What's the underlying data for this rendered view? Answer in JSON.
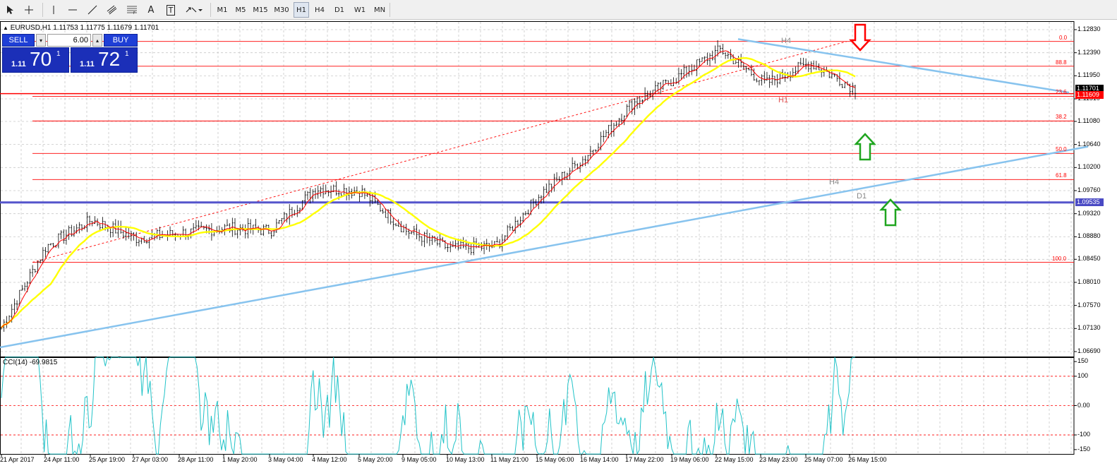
{
  "toolbar": {
    "cursor_icon": "cursor-icon",
    "crosshair_icon": "crosshair-icon",
    "timeframes": [
      {
        "label": "M1",
        "active": false
      },
      {
        "label": "M5",
        "active": false
      },
      {
        "label": "M15",
        "active": false
      },
      {
        "label": "M30",
        "active": false
      },
      {
        "label": "H1",
        "active": true
      },
      {
        "label": "H4",
        "active": false
      },
      {
        "label": "D1",
        "active": false
      },
      {
        "label": "W1",
        "active": false
      },
      {
        "label": "MN",
        "active": false
      }
    ],
    "text_tool": "A",
    "label_tool": "T"
  },
  "chart": {
    "symbol_header": "EURUSD,H1  1.11753 1.11775 1.11679 1.11701",
    "one_click": {
      "sell_label": "SELL",
      "buy_label": "BUY",
      "volume": "6.00",
      "sell_small": "1.11",
      "sell_big": "70",
      "sell_sup": "1",
      "buy_small": "1.11",
      "buy_big": "72",
      "buy_sup": "1"
    },
    "price_axis": [
      "1.12830",
      "1.12390",
      "1.11950",
      "1.11510",
      "1.11080",
      "1.10640",
      "1.10200",
      "1.09760",
      "1.09320",
      "1.08880",
      "1.08450",
      "1.08010",
      "1.07570",
      "1.07130",
      "1.06690"
    ],
    "current_price_tag": "1.11701",
    "red_level_tag": "1.11609",
    "blue_level_tag": "1.09535",
    "fib_levels": [
      "0.0",
      "88.8",
      "23.6",
      "38.2",
      "50.0",
      "61.8",
      "100.0"
    ],
    "annotations": {
      "h4_top": "H4",
      "h1": "H1",
      "h4_mid": "H4",
      "d1": "D1"
    },
    "dates": [
      "21 Apr 2017",
      "24 Apr 11:00",
      "25 Apr 19:00",
      "27 Apr 03:00",
      "28 Apr 11:00",
      "1 May 20:00",
      "3 May 04:00",
      "4 May 12:00",
      "5 May 20:00",
      "9 May 05:00",
      "10 May 13:00",
      "11 May 21:00",
      "15 May 06:00",
      "16 May 14:00",
      "17 May 22:00",
      "19 May 06:00",
      "22 May 15:00",
      "23 May 23:00",
      "25 May 07:00",
      "26 May 15:00"
    ]
  },
  "cci": {
    "title": "CCI(14) -69.9815",
    "axis": [
      "150",
      "100",
      "0.00",
      "-100",
      "-150"
    ]
  },
  "colors": {
    "candle": "#000000",
    "fast_ma": "#ff0000",
    "slow_ma": "#ffff00",
    "trendline": "#87c3ee",
    "support": "#5555cc",
    "fib": "#ff0000",
    "cci": "#22c3c8",
    "arrow_down": "#ff0000",
    "arrow_up": "#1fa51f"
  },
  "chart_data": {
    "type": "line",
    "instrument": "EURUSD",
    "timeframe": "H1",
    "ylim": [
      1.0669,
      1.1283
    ],
    "close_series": [
      {
        "x": "21 Apr 2017",
        "y": 1.0715
      },
      {
        "x": "24 Apr 11:00",
        "y": 1.087
      },
      {
        "x": "25 Apr 19:00",
        "y": 1.092
      },
      {
        "x": "27 Apr 03:00",
        "y": 1.0885
      },
      {
        "x": "28 Apr 11:00",
        "y": 1.0895
      },
      {
        "x": "1 May 20:00",
        "y": 1.0905
      },
      {
        "x": "3 May 04:00",
        "y": 1.09
      },
      {
        "x": "4 May 12:00",
        "y": 1.098
      },
      {
        "x": "5 May 20:00",
        "y": 1.0975
      },
      {
        "x": "9 May 05:00",
        "y": 1.09
      },
      {
        "x": "10 May 13:00",
        "y": 1.0865
      },
      {
        "x": "11 May 21:00",
        "y": 1.087
      },
      {
        "x": "15 May 06:00",
        "y": 1.097
      },
      {
        "x": "16 May 14:00",
        "y": 1.104
      },
      {
        "x": "17 May 22:00",
        "y": 1.114
      },
      {
        "x": "19 May 06:00",
        "y": 1.119
      },
      {
        "x": "22 May 15:00",
        "y": 1.1245
      },
      {
        "x": "23 May 23:00",
        "y": 1.118
      },
      {
        "x": "25 May 07:00",
        "y": 1.122
      },
      {
        "x": "26 May 15:00",
        "y": 1.117
      }
    ]
  }
}
